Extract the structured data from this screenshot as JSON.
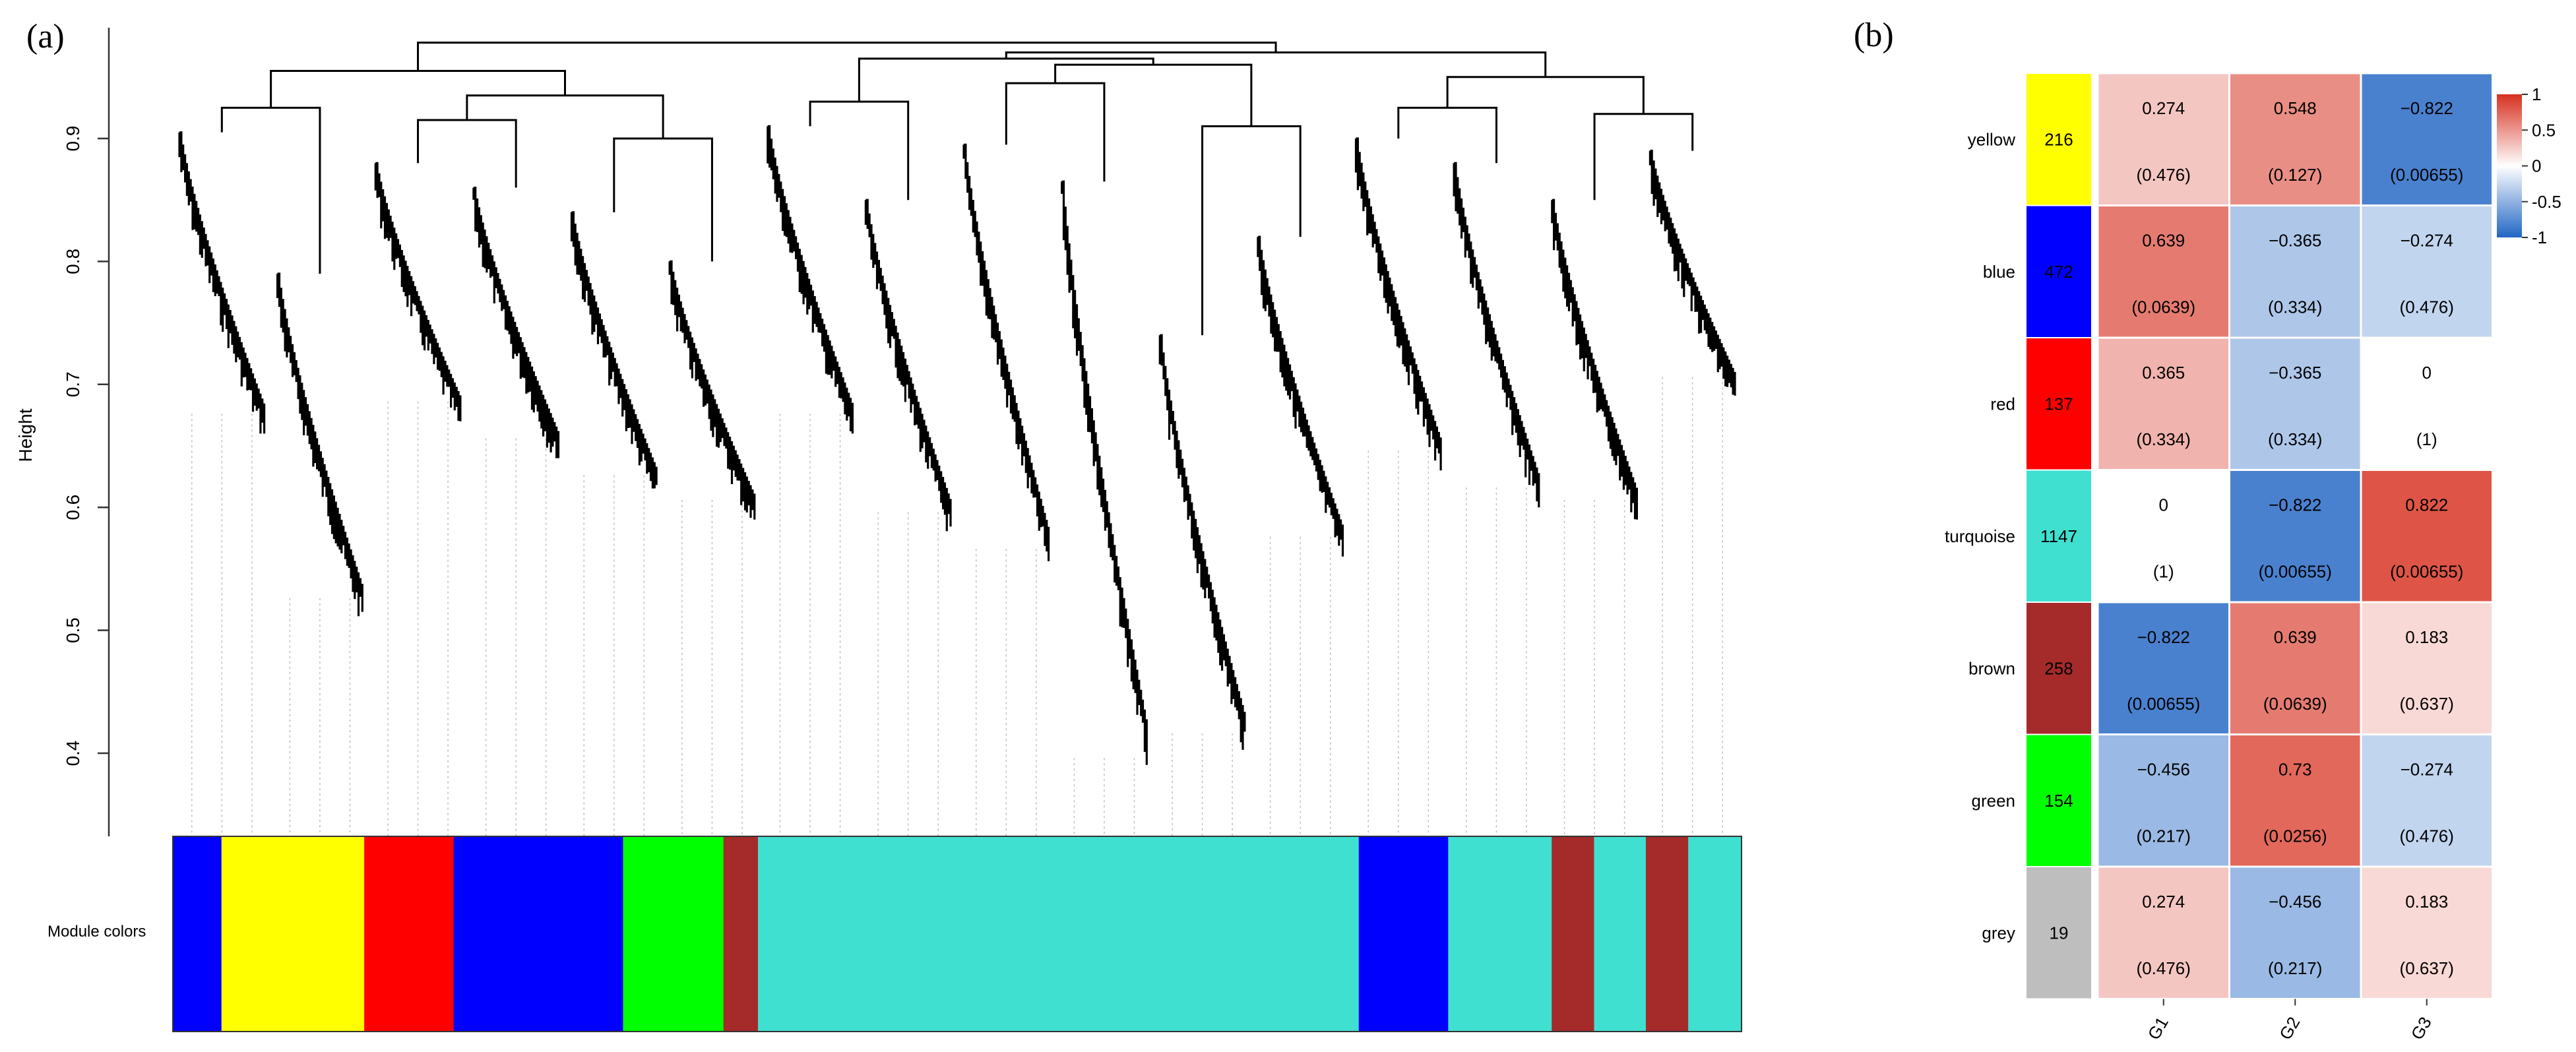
{
  "panel_a": {
    "tag": "(a)",
    "y_axis_label": "Height",
    "module_bar_label": "Module colors"
  },
  "panel_b": {
    "tag": "(b)"
  },
  "colors": {
    "yellow": "#ffff00",
    "blue": "#0000ff",
    "red": "#ff0000",
    "turquoise": "#40e0d0",
    "brown": "#a52a2a",
    "green": "#00ff00",
    "grey": "#bebebe",
    "heat_neg": "#2166c4",
    "heat_mid": "#ffffff",
    "heat_pos": "#d7301f"
  },
  "chart_data": [
    {
      "type": "dendrogram",
      "y_axis": {
        "label": "Height",
        "ticks": [
          0.4,
          0.5,
          0.6,
          0.7,
          0.8,
          0.9
        ],
        "range": [
          0.36,
          0.98
        ]
      },
      "module_colors_bar": {
        "label": "Module colors",
        "segments": [
          {
            "color": "blue",
            "fraction": 0.031
          },
          {
            "color": "yellow",
            "fraction": 0.091
          },
          {
            "color": "red",
            "fraction": 0.057
          },
          {
            "color": "blue",
            "fraction": 0.108
          },
          {
            "color": "green",
            "fraction": 0.064
          },
          {
            "color": "brown",
            "fraction": 0.022
          },
          {
            "color": "turquoise",
            "fraction": 0.383
          },
          {
            "color": "blue",
            "fraction": 0.057
          },
          {
            "color": "turquoise",
            "fraction": 0.066
          },
          {
            "color": "brown",
            "fraction": 0.027
          },
          {
            "color": "turquoise",
            "fraction": 0.033
          },
          {
            "color": "brown",
            "fraction": 0.027
          },
          {
            "color": "turquoise",
            "fraction": 0.034
          }
        ]
      },
      "clusters": [
        {
          "top": 0.905,
          "bottom": 0.66
        },
        {
          "top": 0.79,
          "bottom": 0.51
        },
        {
          "top": 0.88,
          "bottom": 0.67
        },
        {
          "top": 0.86,
          "bottom": 0.64
        },
        {
          "top": 0.84,
          "bottom": 0.61
        },
        {
          "top": 0.8,
          "bottom": 0.59
        },
        {
          "top": 0.91,
          "bottom": 0.66
        },
        {
          "top": 0.85,
          "bottom": 0.58
        },
        {
          "top": 0.895,
          "bottom": 0.55
        },
        {
          "top": 0.865,
          "bottom": 0.38
        },
        {
          "top": 0.74,
          "bottom": 0.4
        },
        {
          "top": 0.82,
          "bottom": 0.56
        },
        {
          "top": 0.9,
          "bottom": 0.63
        },
        {
          "top": 0.88,
          "bottom": 0.6
        },
        {
          "top": 0.85,
          "bottom": 0.59
        },
        {
          "top": 0.89,
          "bottom": 0.69
        }
      ]
    },
    {
      "type": "heatmap",
      "rows": [
        "yellow",
        "blue",
        "red",
        "turquoise",
        "brown",
        "green",
        "grey"
      ],
      "row_counts": [
        "216",
        "472",
        "137",
        "1147",
        "258",
        "154",
        "19"
      ],
      "columns": [
        "G1",
        "G2",
        "G3"
      ],
      "values": [
        [
          0.274,
          0.548,
          -0.822
        ],
        [
          0.639,
          -0.365,
          -0.274
        ],
        [
          0.365,
          -0.365,
          0
        ],
        [
          0,
          -0.822,
          0.822
        ],
        [
          -0.822,
          0.639,
          0.183
        ],
        [
          -0.456,
          0.73,
          -0.274
        ],
        [
          0.274,
          -0.456,
          0.183
        ]
      ],
      "value_labels": [
        [
          "0.274",
          "0.548",
          "−0.822"
        ],
        [
          "0.639",
          "−0.365",
          "−0.274"
        ],
        [
          "0.365",
          "−0.365",
          "0"
        ],
        [
          "0",
          "−0.822",
          "0.822"
        ],
        [
          "−0.822",
          "0.639",
          "0.183"
        ],
        [
          "−0.456",
          "0.73",
          "−0.274"
        ],
        [
          "0.274",
          "−0.456",
          "0.183"
        ]
      ],
      "p_labels": [
        [
          "(0.476)",
          "(0.127)",
          "(0.00655)"
        ],
        [
          "(0.0639)",
          "(0.334)",
          "(0.476)"
        ],
        [
          "(0.334)",
          "(0.334)",
          "(1)"
        ],
        [
          "(1)",
          "(0.00655)",
          "(0.00655)"
        ],
        [
          "(0.00655)",
          "(0.0639)",
          "(0.637)"
        ],
        [
          "(0.217)",
          "(0.0256)",
          "(0.476)"
        ],
        [
          "(0.476)",
          "(0.217)",
          "(0.637)"
        ]
      ],
      "colorbar": {
        "range": [
          -1,
          1
        ],
        "tick_labels": [
          "1",
          "0.5",
          "0",
          "-0.5",
          "-1"
        ],
        "tick_values": [
          1,
          0.5,
          0,
          -0.5,
          -1
        ]
      }
    }
  ]
}
